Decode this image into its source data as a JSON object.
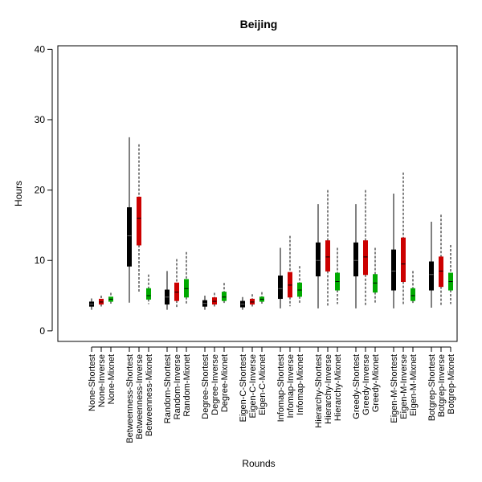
{
  "chart_data": {
    "type": "boxplot",
    "title": "Beijing",
    "xlabel": "Rounds",
    "ylabel": "Hours",
    "ylim": [
      -1.5,
      40.5
    ],
    "yticks": [
      0,
      10,
      20,
      30,
      40
    ],
    "categories": [
      "None-Shortest",
      "None-Inverse",
      "None-Mixnet",
      "Betweenness-Shortest",
      "Betweenness-Inverse",
      "Betweenness-Mixnet",
      "Random-Shortest",
      "Random-Inverse",
      "Random-Mixnet",
      "Degree-Shortest",
      "Degree-Inverse",
      "Degree-Mixnet",
      "Eigen-C-Shortest",
      "Eigen-C-Inverse",
      "Eigen-C-Mixnet",
      "Infomap-Shortest",
      "Infomap-Inverse",
      "Infomap-Mixnet",
      "Hierarchy-Shortest",
      "Hierarchy-Inverse",
      "Hierarchy-Mixnet",
      "Greedy-Shortest",
      "Greedy-Inverse",
      "Greedy-Mixnet",
      "Eigen-M-Shortest",
      "Eigen-M-Inverse",
      "Eigen-M-Mixnet",
      "Botgrep-Shortest",
      "Botgrep-Inverse",
      "Botgrep-Mixnet"
    ],
    "series_colors": {
      "Shortest": "#000000",
      "Inverse": "#cc0000",
      "Mixnet": "#00aa00"
    },
    "boxes": [
      {
        "min": 3.0,
        "q1": 3.5,
        "median": 3.8,
        "q3": 4.1,
        "max": 4.6
      },
      {
        "min": 3.3,
        "q1": 3.8,
        "median": 4.1,
        "q3": 4.5,
        "max": 5.0
      },
      {
        "min": 3.8,
        "q1": 4.2,
        "median": 4.5,
        "q3": 4.8,
        "max": 5.4
      },
      {
        "min": 4.0,
        "q1": 9.2,
        "median": 13.5,
        "q3": 17.5,
        "max": 27.5
      },
      {
        "min": 5.5,
        "q1": 12.2,
        "median": 16.0,
        "q3": 19.0,
        "max": 26.5
      },
      {
        "min": 3.8,
        "q1": 4.5,
        "median": 5.0,
        "q3": 6.0,
        "max": 8.0
      },
      {
        "min": 3.0,
        "q1": 3.8,
        "median": 4.8,
        "q3": 5.8,
        "max": 8.5
      },
      {
        "min": 3.3,
        "q1": 4.3,
        "median": 5.5,
        "q3": 6.8,
        "max": 10.2
      },
      {
        "min": 3.8,
        "q1": 4.8,
        "median": 6.0,
        "q3": 7.3,
        "max": 11.2
      },
      {
        "min": 3.0,
        "q1": 3.5,
        "median": 3.9,
        "q3": 4.3,
        "max": 5.0
      },
      {
        "min": 3.3,
        "q1": 3.8,
        "median": 4.2,
        "q3": 4.7,
        "max": 5.4
      },
      {
        "min": 3.8,
        "q1": 4.3,
        "median": 4.8,
        "q3": 5.5,
        "max": 6.8
      },
      {
        "min": 3.0,
        "q1": 3.4,
        "median": 3.8,
        "q3": 4.2,
        "max": 4.8
      },
      {
        "min": 3.3,
        "q1": 3.8,
        "median": 4.1,
        "q3": 4.5,
        "max": 5.2
      },
      {
        "min": 3.8,
        "q1": 4.2,
        "median": 4.5,
        "q3": 4.8,
        "max": 5.5
      },
      {
        "min": 3.2,
        "q1": 4.6,
        "median": 6.0,
        "q3": 7.8,
        "max": 11.8
      },
      {
        "min": 3.5,
        "q1": 4.8,
        "median": 6.5,
        "q3": 8.3,
        "max": 13.5
      },
      {
        "min": 3.8,
        "q1": 4.9,
        "median": 5.8,
        "q3": 6.8,
        "max": 9.2
      },
      {
        "min": 3.2,
        "q1": 7.8,
        "median": 10.0,
        "q3": 12.5,
        "max": 18.0
      },
      {
        "min": 3.6,
        "q1": 8.5,
        "median": 10.5,
        "q3": 12.8,
        "max": 20.0
      },
      {
        "min": 3.8,
        "q1": 5.8,
        "median": 7.0,
        "q3": 8.2,
        "max": 11.8
      },
      {
        "min": 3.2,
        "q1": 7.8,
        "median": 10.0,
        "q3": 12.5,
        "max": 18.0
      },
      {
        "min": 3.6,
        "q1": 8.0,
        "median": 10.5,
        "q3": 12.8,
        "max": 20.0
      },
      {
        "min": 3.8,
        "q1": 5.5,
        "median": 6.8,
        "q3": 8.0,
        "max": 11.8
      },
      {
        "min": 3.2,
        "q1": 5.8,
        "median": 8.5,
        "q3": 11.5,
        "max": 19.5
      },
      {
        "min": 3.6,
        "q1": 7.0,
        "median": 9.5,
        "q3": 13.2,
        "max": 22.5
      },
      {
        "min": 3.8,
        "q1": 4.3,
        "median": 5.0,
        "q3": 6.0,
        "max": 8.5
      },
      {
        "min": 3.3,
        "q1": 5.8,
        "median": 8.0,
        "q3": 9.8,
        "max": 15.5
      },
      {
        "min": 3.6,
        "q1": 6.3,
        "median": 8.5,
        "q3": 10.5,
        "max": 16.5
      },
      {
        "min": 3.8,
        "q1": 5.8,
        "median": 7.0,
        "q3": 8.2,
        "max": 12.2
      }
    ]
  }
}
